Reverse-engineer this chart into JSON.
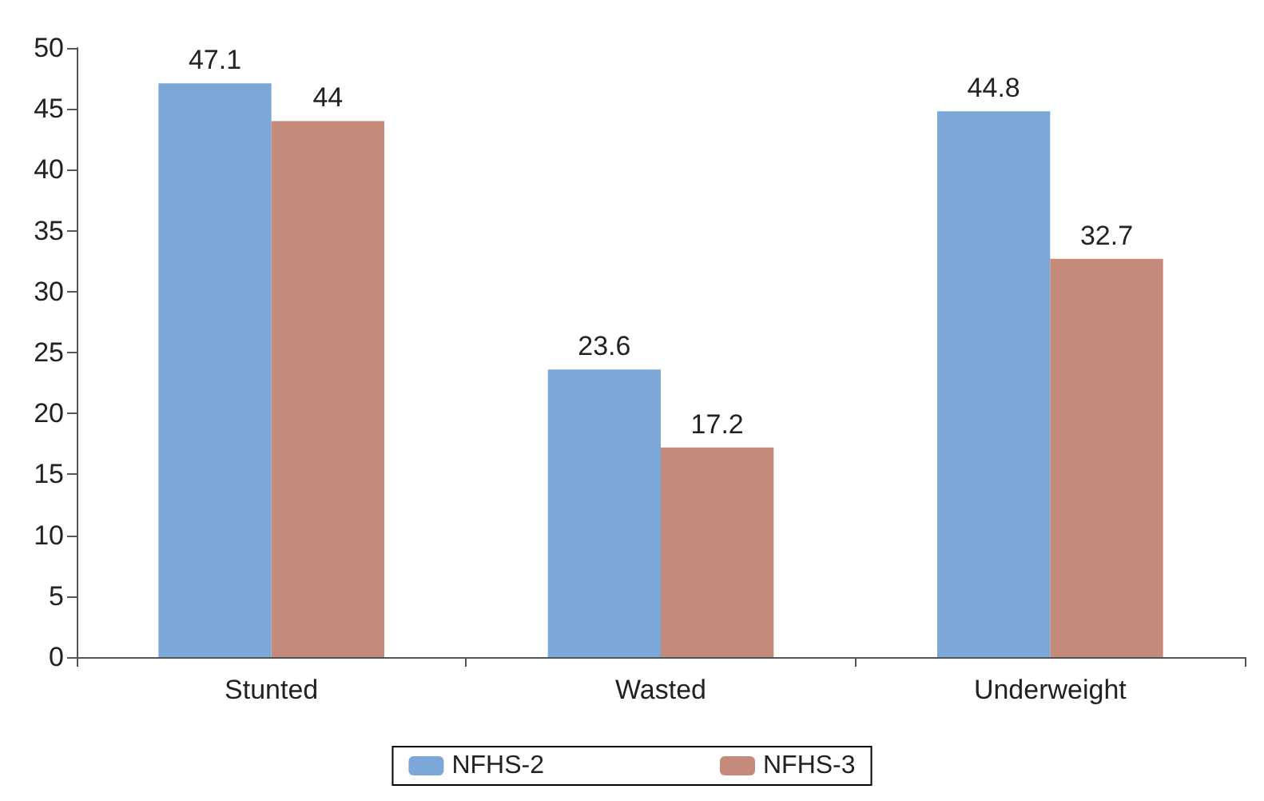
{
  "chart_data": {
    "type": "bar",
    "categories": [
      "Stunted",
      "Wasted",
      "Underweight"
    ],
    "series": [
      {
        "name": "NFHS-2",
        "color": "#7ba7d9",
        "values": [
          47.1,
          23.6,
          44.8
        ]
      },
      {
        "name": "NFHS-3",
        "color": "#c48a7a",
        "values": [
          44,
          17.2,
          32.7
        ]
      }
    ],
    "ylim": [
      0,
      50
    ],
    "yticks": [
      0,
      5,
      10,
      15,
      20,
      25,
      30,
      35,
      40,
      45,
      50
    ],
    "grid": false,
    "legend": "bottom",
    "data_labels": true
  }
}
